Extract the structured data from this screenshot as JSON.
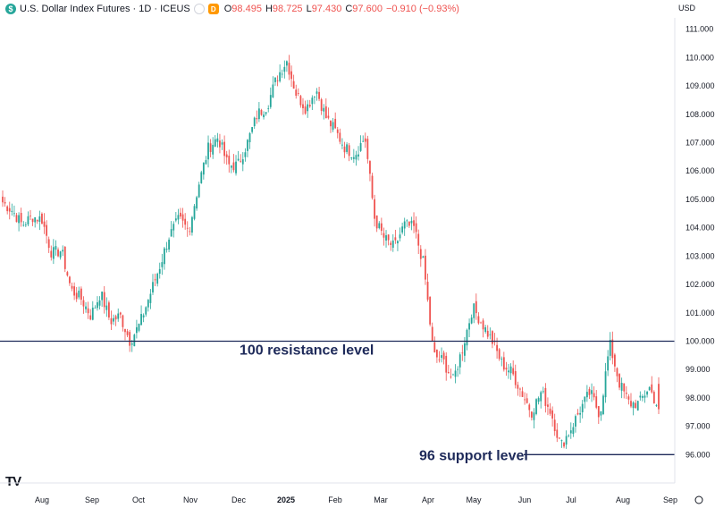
{
  "header": {
    "symbol_icon": "dollar-sign-icon",
    "symbol_glyph": "$",
    "title": "U.S. Dollar Index Futures · 1D · ICEUS",
    "badge": "D",
    "ohlc": {
      "open_label": "O",
      "open": "98.495",
      "high_label": "H",
      "high": "98.725",
      "low_label": "L",
      "low": "97.430",
      "close_label": "C",
      "close": "97.600",
      "change": "−0.910 (−0.93%)"
    }
  },
  "currency_label": "USD",
  "logo_text": "TV",
  "colors": {
    "up": "#26a69a",
    "down": "#ef5350",
    "line": "#1e2a5a",
    "annotation": "#1e2a5a"
  },
  "chart_data": {
    "type": "candlestick",
    "ylim": [
      95.0,
      111.4
    ],
    "y_ticks": [
      "96.000",
      "97.000",
      "98.000",
      "99.000",
      "100.000",
      "101.000",
      "102.000",
      "103.000",
      "104.000",
      "105.000",
      "106.000",
      "107.000",
      "108.000",
      "109.000",
      "110.000",
      "111.000"
    ],
    "x_ticks": [
      "Aug",
      "Sep",
      "Oct",
      "Nov",
      "Dec",
      "2025",
      "Feb",
      "Mar",
      "Apr",
      "May",
      "Jun",
      "Jul",
      "Aug",
      "Sep"
    ],
    "anchors": [
      [
        "Jul",
        104.9
      ],
      [
        "Jul",
        104.6
      ],
      [
        "Jul",
        104.1
      ],
      [
        "Jul",
        104.4
      ],
      [
        "Aug",
        104.3
      ],
      [
        "Aug",
        103.1
      ],
      [
        "Aug",
        103.2
      ],
      [
        "Aug",
        101.8
      ],
      [
        "Aug",
        101.5
      ],
      [
        "Sep",
        100.9
      ],
      [
        "Sep",
        101.7
      ],
      [
        "Sep",
        100.7
      ],
      [
        "Sep",
        100.9
      ],
      [
        "Sep",
        100.0
      ],
      [
        "Oct",
        100.6
      ],
      [
        "Oct",
        101.6
      ],
      [
        "Oct",
        102.6
      ],
      [
        "Oct",
        103.7
      ],
      [
        "Nov",
        104.3
      ],
      [
        "Nov",
        103.9
      ],
      [
        "Nov",
        105.5
      ],
      [
        "Nov",
        106.8
      ],
      [
        "Dec",
        107.2
      ],
      [
        "Dec",
        106.2
      ],
      [
        "Dec",
        106.2
      ],
      [
        "Dec",
        107.0
      ],
      [
        "Dec",
        108.0
      ],
      [
        "Dec",
        108.3
      ],
      [
        "2025",
        109.3
      ],
      [
        "2025",
        109.9
      ],
      [
        "2025",
        108.7
      ],
      [
        "2025",
        108.2
      ],
      [
        "Feb",
        108.9
      ],
      [
        "Feb",
        107.9
      ],
      [
        "Feb",
        107.4
      ],
      [
        "Feb",
        106.8
      ],
      [
        "Feb",
        106.6
      ],
      [
        "Mar",
        107.2
      ],
      [
        "Mar",
        104.3
      ],
      [
        "Mar",
        103.6
      ],
      [
        "Mar",
        103.3
      ],
      [
        "Mar",
        104.1
      ],
      [
        "Apr",
        104.0
      ],
      [
        "Apr",
        102.7
      ],
      [
        "Apr",
        99.5
      ],
      [
        "Apr",
        99.3
      ],
      [
        "Apr",
        98.6
      ],
      [
        "May",
        99.8
      ],
      [
        "May",
        101.2
      ],
      [
        "May",
        100.6
      ],
      [
        "May",
        100.0
      ],
      [
        "May",
        99.2
      ],
      [
        "Jun",
        98.9
      ],
      [
        "Jun",
        98.2
      ],
      [
        "Jun",
        97.5
      ],
      [
        "Jun",
        98.2
      ],
      [
        "Jun",
        97.5
      ],
      [
        "Jul",
        96.3
      ],
      [
        "Jul",
        96.9
      ],
      [
        "Jul",
        97.6
      ],
      [
        "Jul",
        98.2
      ],
      [
        "Jul",
        97.4
      ],
      [
        "Aug",
        99.9
      ],
      [
        "Aug",
        98.5
      ],
      [
        "Aug",
        97.8
      ],
      [
        "Aug",
        97.8
      ],
      [
        "Aug",
        98.4
      ],
      [
        "Aug",
        97.6
      ]
    ],
    "candle_count": 285,
    "open": 98.495,
    "high": 98.725,
    "low": 97.43,
    "close": 97.6,
    "annotations": [
      {
        "label": "100 resistance level",
        "value": 100.0,
        "style": "horizontal-line"
      },
      {
        "label": "96 support level",
        "value": 96.0,
        "style": "horizontal-line"
      }
    ],
    "grid": false,
    "axis_position": "right"
  }
}
